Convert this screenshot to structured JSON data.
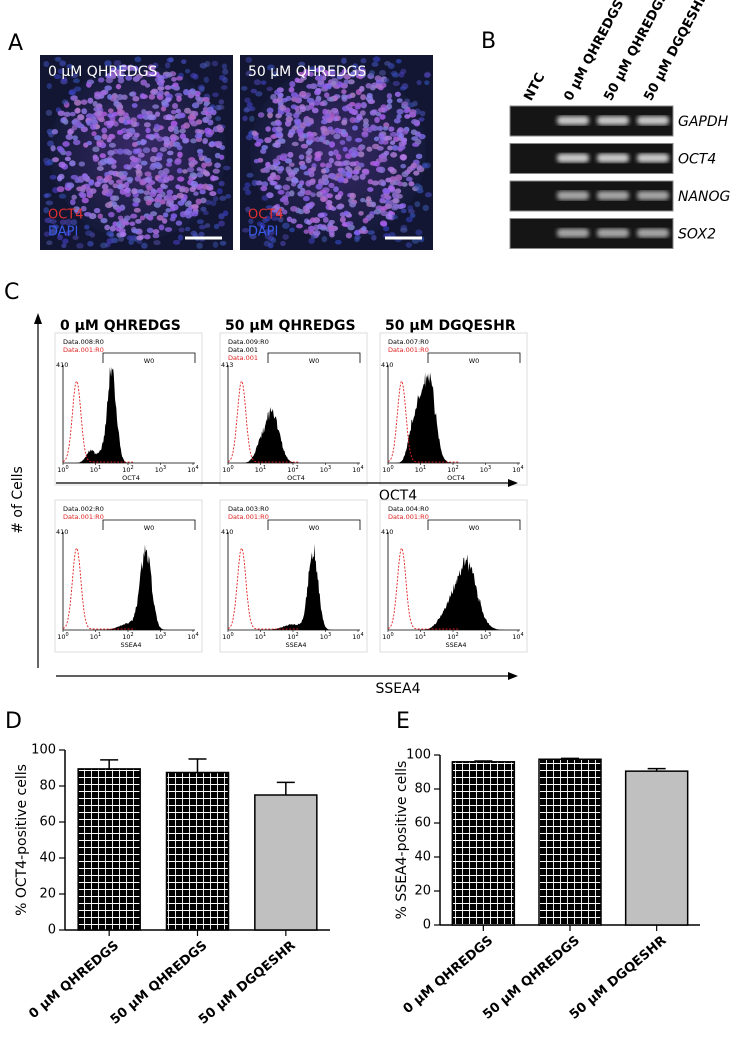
{
  "panel_a": {
    "label": "A",
    "images": [
      {
        "title": "0 µM QHREDGS",
        "stain_1": "OCT4",
        "stain_2": "DAPI"
      },
      {
        "title": "50 µM QHREDGS",
        "stain_1": "OCT4",
        "stain_2": "DAPI"
      }
    ]
  },
  "panel_b": {
    "label": "B",
    "lanes": [
      "NTC",
      "0  µM QHREDGS",
      "50  µM QHREDGS",
      "50  µM DGQESHR"
    ],
    "genes": [
      "GAPDH",
      "OCT4",
      "NANOG",
      "SOX2"
    ]
  },
  "panel_c": {
    "label": "C",
    "y_label": "# of Cells",
    "columns": [
      "0 µM QHREDGS",
      "50 µM QHREDGS",
      "50 µM DGQESHR"
    ],
    "gate": "W0",
    "xticks": [
      {
        "base": "10",
        "exp": "0"
      },
      {
        "base": "10",
        "exp": "1"
      },
      {
        "base": "10",
        "exp": "2"
      },
      {
        "base": "10",
        "exp": "3"
      },
      {
        "base": "10",
        "exp": "4"
      }
    ],
    "rows": [
      {
        "marker": "OCT4",
        "plots": [
          {
            "legend": [
              "Data.008:R0",
              "Data.001:R0"
            ],
            "ymax": 410
          },
          {
            "legend": [
              "Data.009:R0",
              "Data.001",
              "Data.001"
            ],
            "ymax": 413
          },
          {
            "legend": [
              "Data.007:R0",
              "Data.001:R0"
            ],
            "ymax": 410
          }
        ]
      },
      {
        "marker": "SSEA4",
        "plots": [
          {
            "legend": [
              "Data.002:R0",
              "Data.001:R0"
            ],
            "ymax": 410
          },
          {
            "legend": [
              "Data.003:R0",
              "Data.001:R0"
            ],
            "ymax": 410
          },
          {
            "legend": [
              "Data.004:R0",
              "Data.001:R0"
            ],
            "ymax": 410
          }
        ]
      }
    ]
  },
  "chart_data": [
    {
      "type": "bar",
      "panel_label": "D",
      "y_label": "% OCT4-positive cells",
      "categories": [
        "0  µM QHREDGS",
        "50 µM QHREDGS",
        "50 µM DGQESHR"
      ],
      "values": [
        89.5,
        87.5,
        75
      ],
      "errors": [
        5,
        7.5,
        7
      ],
      "colors": [
        "#000000",
        "#000000",
        "#c0c0c0"
      ],
      "hatched": [
        true,
        true,
        false
      ],
      "ylim": [
        0,
        100
      ],
      "yticks": [
        0,
        20,
        40,
        60,
        80,
        100
      ]
    },
    {
      "type": "bar",
      "panel_label": "E",
      "y_label": "% SSEA4-positive cells",
      "categories": [
        "0  µM QHREDGS",
        "50 µM QHREDGS",
        "50 µM DGQESHR"
      ],
      "values": [
        96,
        97.5,
        90.5
      ],
      "errors": [
        0.5,
        0.5,
        1.5
      ],
      "colors": [
        "#000000",
        "#000000",
        "#c0c0c0"
      ],
      "hatched": [
        true,
        true,
        false
      ],
      "ylim": [
        0,
        100
      ],
      "yticks": [
        0,
        20,
        40,
        60,
        80,
        100
      ]
    }
  ]
}
